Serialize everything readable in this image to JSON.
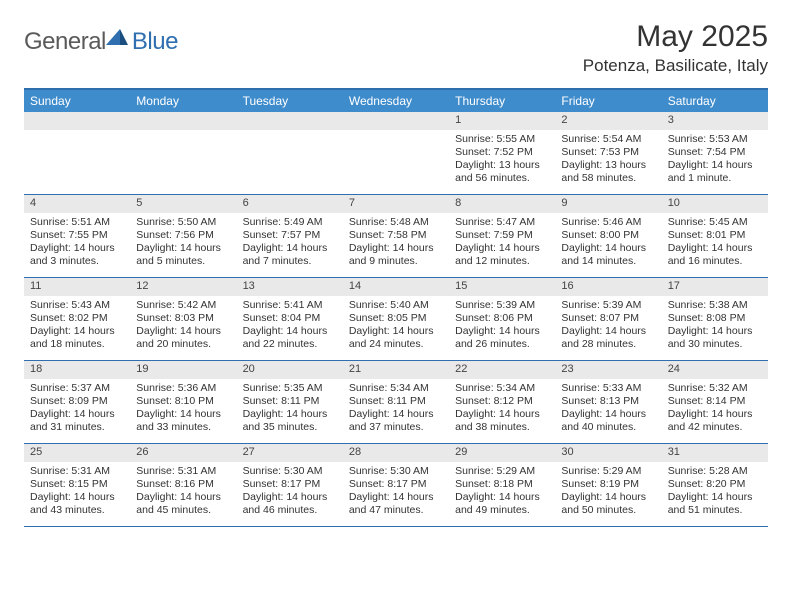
{
  "logo": {
    "general": "General",
    "blue": "Blue"
  },
  "title": "May 2025",
  "location": "Potenza, Basilicate, Italy",
  "colors": {
    "header_bar": "#3f8ccc",
    "border": "#2f6fb0",
    "daynum_bg": "#e9e9e9",
    "text": "#333333",
    "logo_gray": "#5a5a5a",
    "logo_blue": "#2f6fb0"
  },
  "dayNames": [
    "Sunday",
    "Monday",
    "Tuesday",
    "Wednesday",
    "Thursday",
    "Friday",
    "Saturday"
  ],
  "weeks": [
    [
      {
        "n": "",
        "sr": "",
        "ss": "",
        "dl": ""
      },
      {
        "n": "",
        "sr": "",
        "ss": "",
        "dl": ""
      },
      {
        "n": "",
        "sr": "",
        "ss": "",
        "dl": ""
      },
      {
        "n": "",
        "sr": "",
        "ss": "",
        "dl": ""
      },
      {
        "n": "1",
        "sr": "Sunrise: 5:55 AM",
        "ss": "Sunset: 7:52 PM",
        "dl": "Daylight: 13 hours and 56 minutes."
      },
      {
        "n": "2",
        "sr": "Sunrise: 5:54 AM",
        "ss": "Sunset: 7:53 PM",
        "dl": "Daylight: 13 hours and 58 minutes."
      },
      {
        "n": "3",
        "sr": "Sunrise: 5:53 AM",
        "ss": "Sunset: 7:54 PM",
        "dl": "Daylight: 14 hours and 1 minute."
      }
    ],
    [
      {
        "n": "4",
        "sr": "Sunrise: 5:51 AM",
        "ss": "Sunset: 7:55 PM",
        "dl": "Daylight: 14 hours and 3 minutes."
      },
      {
        "n": "5",
        "sr": "Sunrise: 5:50 AM",
        "ss": "Sunset: 7:56 PM",
        "dl": "Daylight: 14 hours and 5 minutes."
      },
      {
        "n": "6",
        "sr": "Sunrise: 5:49 AM",
        "ss": "Sunset: 7:57 PM",
        "dl": "Daylight: 14 hours and 7 minutes."
      },
      {
        "n": "7",
        "sr": "Sunrise: 5:48 AM",
        "ss": "Sunset: 7:58 PM",
        "dl": "Daylight: 14 hours and 9 minutes."
      },
      {
        "n": "8",
        "sr": "Sunrise: 5:47 AM",
        "ss": "Sunset: 7:59 PM",
        "dl": "Daylight: 14 hours and 12 minutes."
      },
      {
        "n": "9",
        "sr": "Sunrise: 5:46 AM",
        "ss": "Sunset: 8:00 PM",
        "dl": "Daylight: 14 hours and 14 minutes."
      },
      {
        "n": "10",
        "sr": "Sunrise: 5:45 AM",
        "ss": "Sunset: 8:01 PM",
        "dl": "Daylight: 14 hours and 16 minutes."
      }
    ],
    [
      {
        "n": "11",
        "sr": "Sunrise: 5:43 AM",
        "ss": "Sunset: 8:02 PM",
        "dl": "Daylight: 14 hours and 18 minutes."
      },
      {
        "n": "12",
        "sr": "Sunrise: 5:42 AM",
        "ss": "Sunset: 8:03 PM",
        "dl": "Daylight: 14 hours and 20 minutes."
      },
      {
        "n": "13",
        "sr": "Sunrise: 5:41 AM",
        "ss": "Sunset: 8:04 PM",
        "dl": "Daylight: 14 hours and 22 minutes."
      },
      {
        "n": "14",
        "sr": "Sunrise: 5:40 AM",
        "ss": "Sunset: 8:05 PM",
        "dl": "Daylight: 14 hours and 24 minutes."
      },
      {
        "n": "15",
        "sr": "Sunrise: 5:39 AM",
        "ss": "Sunset: 8:06 PM",
        "dl": "Daylight: 14 hours and 26 minutes."
      },
      {
        "n": "16",
        "sr": "Sunrise: 5:39 AM",
        "ss": "Sunset: 8:07 PM",
        "dl": "Daylight: 14 hours and 28 minutes."
      },
      {
        "n": "17",
        "sr": "Sunrise: 5:38 AM",
        "ss": "Sunset: 8:08 PM",
        "dl": "Daylight: 14 hours and 30 minutes."
      }
    ],
    [
      {
        "n": "18",
        "sr": "Sunrise: 5:37 AM",
        "ss": "Sunset: 8:09 PM",
        "dl": "Daylight: 14 hours and 31 minutes."
      },
      {
        "n": "19",
        "sr": "Sunrise: 5:36 AM",
        "ss": "Sunset: 8:10 PM",
        "dl": "Daylight: 14 hours and 33 minutes."
      },
      {
        "n": "20",
        "sr": "Sunrise: 5:35 AM",
        "ss": "Sunset: 8:11 PM",
        "dl": "Daylight: 14 hours and 35 minutes."
      },
      {
        "n": "21",
        "sr": "Sunrise: 5:34 AM",
        "ss": "Sunset: 8:11 PM",
        "dl": "Daylight: 14 hours and 37 minutes."
      },
      {
        "n": "22",
        "sr": "Sunrise: 5:34 AM",
        "ss": "Sunset: 8:12 PM",
        "dl": "Daylight: 14 hours and 38 minutes."
      },
      {
        "n": "23",
        "sr": "Sunrise: 5:33 AM",
        "ss": "Sunset: 8:13 PM",
        "dl": "Daylight: 14 hours and 40 minutes."
      },
      {
        "n": "24",
        "sr": "Sunrise: 5:32 AM",
        "ss": "Sunset: 8:14 PM",
        "dl": "Daylight: 14 hours and 42 minutes."
      }
    ],
    [
      {
        "n": "25",
        "sr": "Sunrise: 5:31 AM",
        "ss": "Sunset: 8:15 PM",
        "dl": "Daylight: 14 hours and 43 minutes."
      },
      {
        "n": "26",
        "sr": "Sunrise: 5:31 AM",
        "ss": "Sunset: 8:16 PM",
        "dl": "Daylight: 14 hours and 45 minutes."
      },
      {
        "n": "27",
        "sr": "Sunrise: 5:30 AM",
        "ss": "Sunset: 8:17 PM",
        "dl": "Daylight: 14 hours and 46 minutes."
      },
      {
        "n": "28",
        "sr": "Sunrise: 5:30 AM",
        "ss": "Sunset: 8:17 PM",
        "dl": "Daylight: 14 hours and 47 minutes."
      },
      {
        "n": "29",
        "sr": "Sunrise: 5:29 AM",
        "ss": "Sunset: 8:18 PM",
        "dl": "Daylight: 14 hours and 49 minutes."
      },
      {
        "n": "30",
        "sr": "Sunrise: 5:29 AM",
        "ss": "Sunset: 8:19 PM",
        "dl": "Daylight: 14 hours and 50 minutes."
      },
      {
        "n": "31",
        "sr": "Sunrise: 5:28 AM",
        "ss": "Sunset: 8:20 PM",
        "dl": "Daylight: 14 hours and 51 minutes."
      }
    ]
  ]
}
